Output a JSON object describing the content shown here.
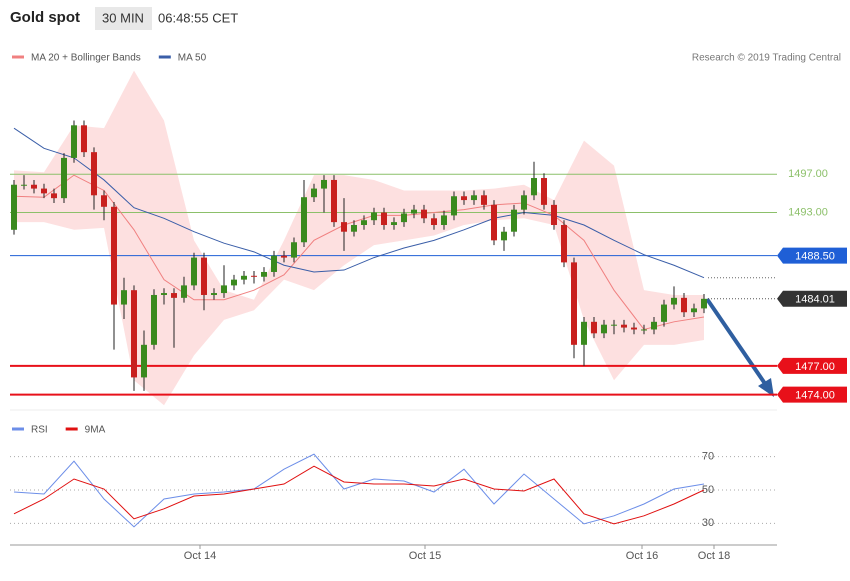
{
  "chart_data": {
    "type": "candlestick",
    "title": "Gold spot",
    "interval": "30 MIN",
    "time": "06:48:55 CET",
    "source": "Research © 2019 Trading Central",
    "xlim": [
      -0.4,
      76.1
    ],
    "xticks": [
      {
        "value": 18.6,
        "label": "Oct 14"
      },
      {
        "value": 41.1,
        "label": "Oct 15"
      },
      {
        "value": 62.8,
        "label": "Oct 16"
      },
      {
        "value": 70,
        "label": "Oct 18"
      }
    ],
    "ylim": [
      1472.4,
      1511
    ],
    "up_color": "#3a8a1e",
    "down_color": "#c8201e",
    "candles": [
      [
        1491.2,
        1496.4,
        1490.7,
        1495.9
      ],
      [
        1495.9,
        1496.9,
        1495.4,
        1495.9
      ],
      [
        1495.9,
        1496.4,
        1495.0,
        1495.5
      ],
      [
        1495.5,
        1496.0,
        1494.5,
        1495.0
      ],
      [
        1495.0,
        1495.5,
        1494.0,
        1494.5
      ],
      [
        1494.5,
        1499.2,
        1494.0,
        1498.7
      ],
      [
        1498.7,
        1502.6,
        1498.2,
        1502.1
      ],
      [
        1502.1,
        1502.6,
        1498.8,
        1499.3
      ],
      [
        1499.3,
        1499.8,
        1493.3,
        1494.8
      ],
      [
        1494.8,
        1495.3,
        1492.2,
        1493.6
      ],
      [
        1493.6,
        1494.1,
        1478.7,
        1483.4
      ],
      [
        1483.4,
        1486.2,
        1481.9,
        1484.9
      ],
      [
        1484.9,
        1485.4,
        1474.4,
        1475.8
      ],
      [
        1475.8,
        1480.7,
        1474.4,
        1479.2
      ],
      [
        1479.2,
        1485.0,
        1478.7,
        1484.4
      ],
      [
        1484.4,
        1485.1,
        1483.4,
        1484.6
      ],
      [
        1484.6,
        1485.1,
        1478.9,
        1484.1
      ],
      [
        1484.1,
        1486.3,
        1483.6,
        1485.4
      ],
      [
        1485.4,
        1488.8,
        1484.9,
        1488.3
      ],
      [
        1488.3,
        1488.8,
        1482.8,
        1484.4
      ],
      [
        1484.4,
        1485.1,
        1483.9,
        1484.6
      ],
      [
        1484.6,
        1487.5,
        1484.1,
        1485.4
      ],
      [
        1485.4,
        1486.5,
        1484.9,
        1486.0
      ],
      [
        1486.0,
        1486.9,
        1485.5,
        1486.4
      ],
      [
        1486.4,
        1486.9,
        1485.6,
        1486.3
      ],
      [
        1486.3,
        1487.3,
        1485.8,
        1486.8
      ],
      [
        1486.8,
        1489.0,
        1486.3,
        1488.5
      ],
      [
        1488.5,
        1489.0,
        1487.8,
        1488.3
      ],
      [
        1488.3,
        1490.4,
        1487.8,
        1489.9
      ],
      [
        1489.9,
        1496.4,
        1489.4,
        1494.6
      ],
      [
        1494.6,
        1496.0,
        1494.1,
        1495.5
      ],
      [
        1495.5,
        1496.9,
        1493.0,
        1496.4
      ],
      [
        1496.4,
        1496.9,
        1491.5,
        1492.0
      ],
      [
        1492.0,
        1494.5,
        1489.0,
        1491.0
      ],
      [
        1491.0,
        1492.2,
        1490.5,
        1491.7
      ],
      [
        1491.7,
        1492.7,
        1491.2,
        1492.2
      ],
      [
        1492.2,
        1493.5,
        1491.7,
        1493.0
      ],
      [
        1493.0,
        1493.5,
        1491.2,
        1491.7
      ],
      [
        1491.7,
        1492.5,
        1491.2,
        1492.0
      ],
      [
        1492.0,
        1493.4,
        1491.5,
        1492.9
      ],
      [
        1492.9,
        1493.8,
        1492.4,
        1493.3
      ],
      [
        1493.3,
        1493.8,
        1491.9,
        1492.4
      ],
      [
        1492.4,
        1492.9,
        1491.2,
        1491.7
      ],
      [
        1491.7,
        1493.2,
        1491.2,
        1492.7
      ],
      [
        1492.7,
        1495.2,
        1492.2,
        1494.7
      ],
      [
        1494.7,
        1495.2,
        1493.8,
        1494.3
      ],
      [
        1494.3,
        1495.3,
        1493.8,
        1494.8
      ],
      [
        1494.8,
        1495.3,
        1493.3,
        1493.8
      ],
      [
        1493.8,
        1494.3,
        1489.6,
        1490.1
      ],
      [
        1490.1,
        1491.5,
        1489.0,
        1491.0
      ],
      [
        1491.0,
        1493.8,
        1490.5,
        1493.3
      ],
      [
        1493.3,
        1495.3,
        1492.8,
        1494.8
      ],
      [
        1494.8,
        1498.3,
        1494.3,
        1496.6
      ],
      [
        1496.6,
        1497.1,
        1493.3,
        1493.8
      ],
      [
        1493.8,
        1494.3,
        1491.2,
        1491.7
      ],
      [
        1491.7,
        1492.2,
        1487.3,
        1487.8
      ],
      [
        1487.8,
        1488.3,
        1477.8,
        1479.2
      ],
      [
        1479.2,
        1482.1,
        1477.0,
        1481.6
      ],
      [
        1481.6,
        1482.1,
        1479.9,
        1480.4
      ],
      [
        1480.4,
        1481.8,
        1479.9,
        1481.3
      ],
      [
        1481.3,
        1481.8,
        1480.3,
        1481.3
      ],
      [
        1481.3,
        1481.8,
        1480.5,
        1481.0
      ],
      [
        1481.0,
        1481.5,
        1480.3,
        1480.8
      ],
      [
        1480.8,
        1481.3,
        1480.3,
        1480.8
      ],
      [
        1480.8,
        1482.1,
        1480.3,
        1481.6
      ],
      [
        1481.6,
        1483.9,
        1481.1,
        1483.4
      ],
      [
        1483.4,
        1485.3,
        1482.9,
        1484.1
      ],
      [
        1484.1,
        1484.6,
        1482.1,
        1482.6
      ],
      [
        1482.6,
        1483.5,
        1482.1,
        1483.0
      ],
      [
        1483.0,
        1484.5,
        1482.5,
        1484.0
      ]
    ],
    "overlays": {
      "x": [
        0,
        3,
        6,
        9,
        12,
        15,
        18,
        21,
        24,
        27,
        30,
        33,
        36,
        39,
        42,
        45,
        48,
        51,
        54,
        57,
        60,
        63,
        66,
        69
      ],
      "series": [
        {
          "name": "MA 20 + Bollinger Bands",
          "color": "#f08080",
          "band_color": "#fde0e0",
          "values": [
            1494.7,
            1494.6,
            1496.9,
            1495.3,
            1491.2,
            1486.0,
            1483.9,
            1483.9,
            1484.9,
            1486.5,
            1490.1,
            1491.7,
            1492.7,
            1492.7,
            1493.0,
            1493.3,
            1493.8,
            1494.0,
            1492.7,
            1490.1,
            1484.9,
            1480.8,
            1481.6,
            1482.1
          ],
          "upper": [
            1497.4,
            1497.2,
            1502.1,
            1501.8,
            1507.8,
            1502.6,
            1490.1,
            1484.9,
            1483.9,
            1490.1,
            1496.9,
            1496.9,
            1496.4,
            1495.3,
            1495.3,
            1495.3,
            1495.5,
            1495.9,
            1494.3,
            1500.5,
            1497.9,
            1484.9,
            1484.4,
            1484.4
          ],
          "lower": [
            1492.0,
            1492.0,
            1491.2,
            1491.4,
            1475.5,
            1472.9,
            1478.1,
            1481.8,
            1482.8,
            1486.0,
            1484.9,
            1487.5,
            1489.6,
            1490.1,
            1490.6,
            1491.7,
            1492.2,
            1492.4,
            1491.7,
            1481.8,
            1475.5,
            1479.2,
            1479.2,
            1479.7
          ]
        },
        {
          "name": "MA 50",
          "color": "#3a5ea8",
          "values": [
            1501.8,
            1499.7,
            1498.7,
            1496.4,
            1493.5,
            1492.4,
            1491.0,
            1489.8,
            1488.9,
            1487.5,
            1486.8,
            1487.0,
            1488.3,
            1489.3,
            1490.1,
            1491.2,
            1492.4,
            1493.0,
            1492.7,
            1491.7,
            1490.1,
            1488.6,
            1487.5,
            1486.2
          ]
        }
      ]
    },
    "levels": [
      {
        "value": 1497,
        "label": "1497.00",
        "color": "#8cc06a",
        "line_width": 1,
        "label_box": false
      },
      {
        "value": 1493,
        "label": "1493.00",
        "color": "#8cc06a",
        "line_width": 1,
        "label_box": false
      },
      {
        "value": 1488.5,
        "label": "1488.50",
        "color": "#1f5fd6",
        "line_width": 1,
        "label_box": true
      },
      {
        "value": 1477,
        "label": "1477.00",
        "color": "#e8101a",
        "line_width": 2,
        "label_box": true
      },
      {
        "value": 1474,
        "label": "1474.00",
        "color": "#e8101a",
        "line_width": 2,
        "label_box": true
      }
    ],
    "last_price": {
      "value": 1484.01,
      "label": "1484.01",
      "color": "#333333"
    },
    "rsi": {
      "ylim": [
        20,
        86
      ],
      "yticks": [
        30,
        50,
        70
      ],
      "series": [
        {
          "name": "RSI",
          "color": "#6c8ee8",
          "values": [
            48.8,
            47.6,
            67.3,
            44.6,
            27.9,
            44.6,
            47.6,
            48.8,
            50.6,
            62.5,
            71.5,
            50.6,
            56.6,
            55.4,
            48.8,
            62.5,
            41.6,
            59.6,
            44.6,
            29.7,
            34.5,
            41.6,
            50.6,
            53.6
          ]
        },
        {
          "name": "9MA",
          "color": "#e01010",
          "values": [
            35.7,
            44.6,
            56.6,
            50.6,
            32.7,
            38.7,
            46.4,
            47.6,
            50.6,
            53.6,
            64.3,
            54.8,
            53.6,
            53.6,
            52.4,
            56.6,
            50.6,
            49.4,
            56.6,
            35.7,
            29.7,
            34.5,
            41.6,
            50.0
          ]
        }
      ]
    }
  }
}
